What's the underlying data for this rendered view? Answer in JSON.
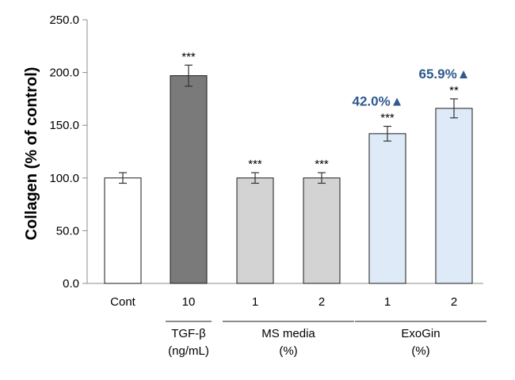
{
  "chart_data": {
    "type": "bar",
    "ylabel": "Collagen (% of control)",
    "ylim": [
      0,
      250
    ],
    "yticks": [
      "0.0",
      "50.0",
      "100.0",
      "150.0",
      "200.0",
      "250.0"
    ],
    "categories": [
      "Cont",
      "10",
      "1",
      "2",
      "1",
      "2"
    ],
    "values": [
      100,
      197,
      100,
      100,
      142,
      166
    ],
    "errors": [
      5,
      10,
      5,
      5,
      7,
      9
    ],
    "significance": [
      "",
      "***",
      "***",
      "***",
      "***",
      "**"
    ],
    "bar_colors": [
      "#ffffff",
      "#7a7a7a",
      "#d3d3d3",
      "#d3d3d3",
      "#deeaf7",
      "#deeaf7"
    ],
    "annotations": [
      {
        "bar": 4,
        "text": "42.0%▲"
      },
      {
        "bar": 5,
        "text": "65.9%▲"
      }
    ],
    "annotation_color": "#2e5a8e",
    "groups": [
      {
        "line1": "TGF-β",
        "line2": "(ng/mL)",
        "bars": [
          1,
          1
        ]
      },
      {
        "line1": "MS media",
        "line2": "(%)",
        "bars": [
          2,
          3
        ]
      },
      {
        "line1": "ExoGin",
        "line2": "(%)",
        "bars": [
          4,
          5
        ]
      }
    ],
    "grid": false,
    "legend": "none"
  }
}
